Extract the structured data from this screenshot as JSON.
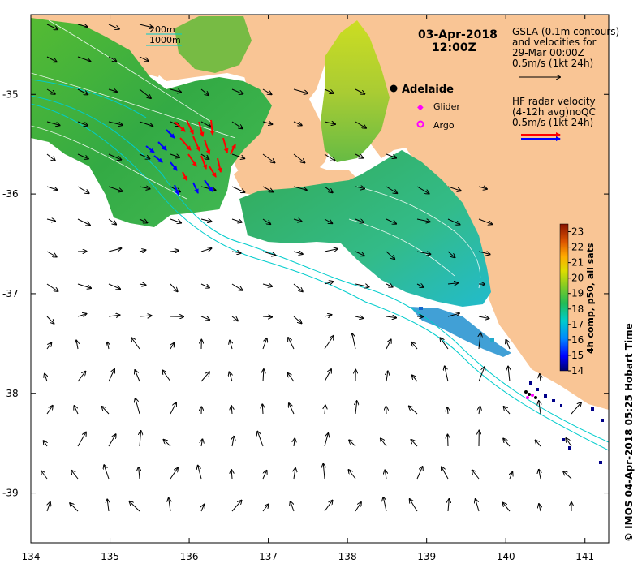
{
  "title": {
    "date": "03-Apr-2018",
    "time": "12:00Z"
  },
  "depth_legend": {
    "contour_1": "200m",
    "contour_2": "1000m",
    "contour_color": "#00cccc"
  },
  "gsla_legend": {
    "line1": "GSLA (0.1m contours)",
    "line2": "and velocities for",
    "line3": "29-Mar 00:00Z",
    "line4": "0.5m/s (1kt 24h)"
  },
  "radar_legend": {
    "line1": "HF radar velocity",
    "line2": "(4-12h avg)noQC",
    "line3": "0.5m/s (1kt 24h)",
    "colors": [
      "#ff0000",
      "#0000ff"
    ]
  },
  "places": {
    "city": "Adelaide",
    "glider": "Glider",
    "argo": "Argo"
  },
  "colorbar": {
    "label": "4h comp, p50, all sats",
    "ticks": [
      "23",
      "22",
      "21",
      "20",
      "19",
      "18",
      "17",
      "16",
      "15",
      "14"
    ],
    "min": 14,
    "max": 23.5
  },
  "axes": {
    "x_ticks": [
      "134",
      "135",
      "136",
      "137",
      "138",
      "139",
      "140",
      "141"
    ],
    "y_ticks": [
      "-35",
      "-36",
      "-37",
      "-38",
      "-39"
    ],
    "xlim": [
      134,
      141.3
    ],
    "ylim": [
      -39.5,
      -34.2
    ]
  },
  "credit": "© IMOS 04-Apr-2018 05:25 Hobart Time",
  "colors": {
    "land": "#f9c595",
    "sea_warm": "#44bb44",
    "sea_cool": "#22bbcc",
    "radar_red": "#ff0000",
    "radar_blue": "#0000ff"
  }
}
